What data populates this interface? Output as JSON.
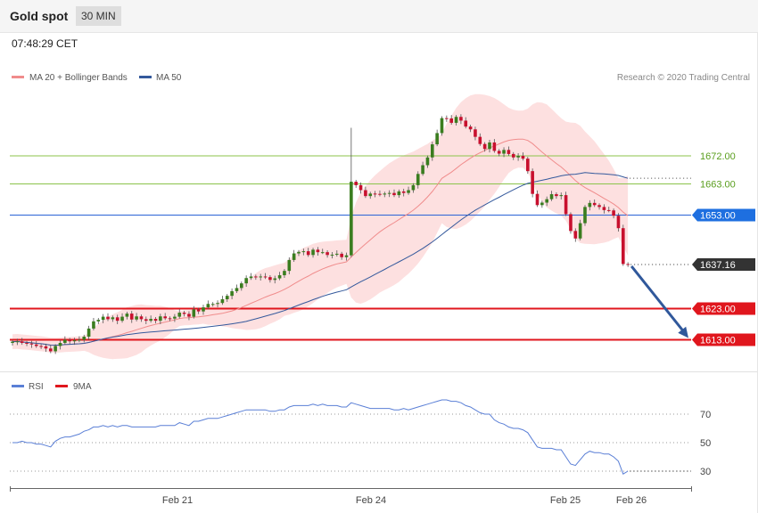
{
  "header": {
    "title": "Gold spot",
    "timeframe": "30 MIN",
    "time": "07:48:29 CET"
  },
  "legend": {
    "ma20": "MA 20 + Bollinger Bands",
    "ma50": "MA 50",
    "credit": "Research © 2020 Trading Central",
    "rsi": "RSI",
    "rsi_ma": "9MA"
  },
  "colors": {
    "bull": "#3a7d1f",
    "bear": "#c8102e",
    "ma20": "#f08c8c",
    "ma50": "#34599c",
    "bands": "#fde0e0",
    "resistance": "#8bc34a",
    "support": "#e0161d",
    "pivot": "#2a63d6",
    "arrow": "#30589b",
    "rsi": "#5a7fd6"
  },
  "chart_data": {
    "type": "candlestick",
    "x_ticks": [
      "Feb 21",
      "Feb 24",
      "Feb 25",
      "Feb 26"
    ],
    "ylim": [
      1602,
      1696
    ],
    "levels": [
      {
        "label": "1672.00",
        "value": 1672,
        "kind": "resistance"
      },
      {
        "label": "1663.00",
        "value": 1663,
        "kind": "resistance"
      },
      {
        "label": "1653.00",
        "value": 1653,
        "kind": "pivot"
      },
      {
        "label": "1623.00",
        "value": 1623,
        "kind": "support"
      },
      {
        "label": "1613.00",
        "value": 1613,
        "kind": "support"
      }
    ],
    "last_price": {
      "label": "1637.16",
      "value": 1637.16
    },
    "projection": {
      "from": 1637.16,
      "to": 1613
    },
    "close": [
      1612.4,
      1612.5,
      1612.0,
      1611.8,
      1611.5,
      1611.0,
      1610.9,
      1610.2,
      1609.3,
      1611.0,
      1612.0,
      1613.0,
      1612.5,
      1612.8,
      1613.0,
      1614.0,
      1616.6,
      1618.9,
      1619.4,
      1620.4,
      1619.6,
      1620.2,
      1619.1,
      1620.4,
      1621.4,
      1619.5,
      1620.5,
      1619.6,
      1619.1,
      1619.7,
      1619.1,
      1620.5,
      1619.9,
      1619.8,
      1620.4,
      1621.7,
      1621.3,
      1620.4,
      1622.7,
      1622.1,
      1623.4,
      1624.5,
      1624.5,
      1624.8,
      1626.0,
      1627.1,
      1628.6,
      1629.6,
      1631.1,
      1632.8,
      1633.3,
      1633.1,
      1633.3,
      1633.1,
      1632.2,
      1632.7,
      1633.7,
      1635.1,
      1638.6,
      1640.7,
      1641.2,
      1641.4,
      1640.2,
      1641.9,
      1641.1,
      1641.1,
      1640.2,
      1640.3,
      1640.6,
      1639.5,
      1640.1,
      1663.7,
      1662.6,
      1661.0,
      1659.1,
      1659.9,
      1659.8,
      1659.6,
      1659.9,
      1660.1,
      1659.4,
      1660.6,
      1660.1,
      1661.0,
      1662.6,
      1666.2,
      1669.0,
      1671.5,
      1675.7,
      1679.3,
      1684.1,
      1684.0,
      1682.6,
      1684.5,
      1683.3,
      1681.4,
      1680.5,
      1678.1,
      1675.8,
      1674.2,
      1676.3,
      1673.6,
      1672.7,
      1673.9,
      1672.6,
      1671.5,
      1672.0,
      1671.1,
      1667.1,
      1659.8,
      1656.2,
      1657.0,
      1658.1,
      1659.7,
      1659.1,
      1659.4,
      1653.3,
      1647.9,
      1645.5,
      1650.4,
      1655.6,
      1656.9,
      1656.2,
      1655.6,
      1654.6,
      1654.5,
      1652.8,
      1648.8,
      1637.3,
      1637.2
    ],
    "rsi": [
      50,
      50,
      51,
      50,
      50,
      49,
      49,
      48,
      47,
      51,
      53,
      54,
      54,
      55,
      56,
      58,
      59,
      61,
      61,
      62,
      61,
      62,
      61,
      62,
      62,
      61,
      61,
      61,
      61,
      61,
      61,
      62,
      62,
      62,
      62,
      64,
      63,
      62,
      65,
      65,
      66,
      67,
      67,
      67,
      68,
      69,
      70,
      71,
      72,
      73,
      73,
      73,
      73,
      73,
      72,
      72,
      73,
      73,
      75,
      76,
      76,
      76,
      76,
      77,
      76,
      77,
      76,
      76,
      76,
      75,
      75,
      78,
      77,
      76,
      75,
      74,
      74,
      74,
      74,
      74,
      73,
      73,
      74,
      73,
      74,
      75,
      76,
      77,
      78,
      79,
      80,
      80,
      79,
      79,
      78,
      76,
      75,
      73,
      71,
      70,
      70,
      66,
      64,
      63,
      61,
      60,
      60,
      59,
      57,
      52,
      47,
      46,
      46,
      46,
      45,
      45,
      40,
      35,
      34,
      38,
      42,
      44,
      43,
      43,
      42,
      42,
      40,
      37,
      28,
      30
    ]
  }
}
